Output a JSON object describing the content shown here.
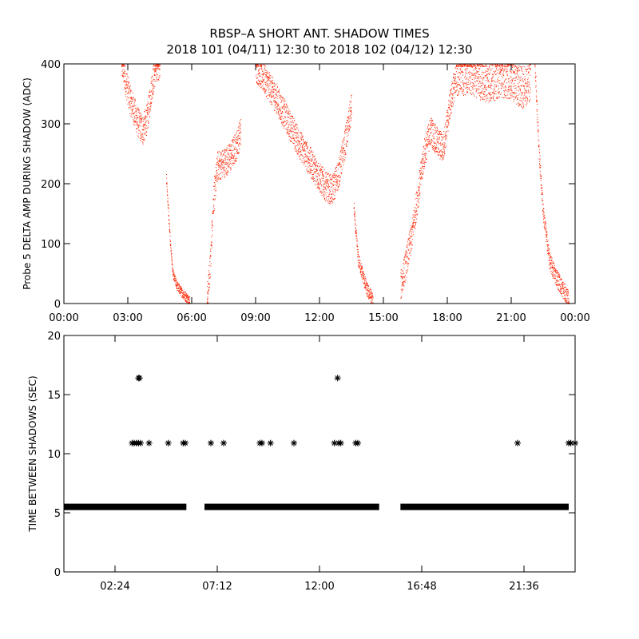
{
  "title": {
    "line1": "RBSP–A SHORT ANT. SHADOW TIMES",
    "line2": "2018 101 (04/11) 12:30 to 2018 102 (04/12) 12:30"
  },
  "colors": {
    "top_series": "#ff2200",
    "bottom_series": "#000000",
    "frame": "#000000"
  },
  "chart_data": [
    {
      "id": "top",
      "type": "scatter",
      "ylabel": "Probe 5 DELTA AMP DURING SHADOW (ADC)",
      "xlabel": "",
      "xlim": [
        0,
        24
      ],
      "ylim": [
        0,
        400
      ],
      "x_ticks": [
        {
          "v": 0,
          "label": "00:00"
        },
        {
          "v": 3,
          "label": "03:00"
        },
        {
          "v": 6,
          "label": "06:00"
        },
        {
          "v": 9,
          "label": "09:00"
        },
        {
          "v": 12,
          "label": "12:00"
        },
        {
          "v": 15,
          "label": "15:00"
        },
        {
          "v": 18,
          "label": "18:00"
        },
        {
          "v": 21,
          "label": "21:00"
        },
        {
          "v": 24,
          "label": "00:00"
        }
      ],
      "y_ticks": [
        {
          "v": 0,
          "label": "0"
        },
        {
          "v": 100,
          "label": "100"
        },
        {
          "v": 200,
          "label": "200"
        },
        {
          "v": 300,
          "label": "300"
        },
        {
          "v": 400,
          "label": "400"
        }
      ],
      "series": [
        {
          "color": "#ff2200",
          "segments": [
            {
              "x": [
                2.7,
                2.9,
                3.1,
                3.3,
                3.5,
                3.7,
                3.9,
                4.1,
                4.3,
                4.5
              ],
              "y": [
                400,
                370,
                340,
                320,
                300,
                290,
                310,
                360,
                395,
                400
              ],
              "spread": 25
            },
            {
              "x": [
                4.8,
                4.95,
                5.1,
                5.3,
                5.5,
                5.7,
                5.9
              ],
              "y": [
                210,
                120,
                50,
                30,
                20,
                12,
                5
              ],
              "spread": 8
            },
            {
              "x": [
                6.7,
                6.85,
                7.0,
                7.2,
                7.5,
                7.8,
                8.1,
                8.3
              ],
              "y": [
                5,
                60,
                170,
                230,
                235,
                245,
                265,
                290
              ],
              "spread": 25
            },
            {
              "x": [
                9.0,
                9.5,
                10.0,
                10.5,
                11.0,
                11.5,
                12.0,
                12.3,
                12.6,
                12.9,
                13.2,
                13.5
              ],
              "y": [
                395,
                370,
                340,
                305,
                270,
                240,
                210,
                195,
                190,
                220,
                270,
                330
              ],
              "spread": 25
            },
            {
              "x": [
                13.6,
                13.8,
                14.0,
                14.2,
                14.5
              ],
              "y": [
                160,
                75,
                50,
                25,
                5
              ],
              "spread": 12
            },
            {
              "x": [
                15.8,
                16.0,
                16.3,
                16.6,
                16.9,
                17.2,
                17.5,
                17.8,
                18.1,
                18.4
              ],
              "y": [
                30,
                60,
                110,
                180,
                250,
                290,
                270,
                260,
                330,
                380
              ],
              "spread": 25
            },
            {
              "x": [
                18.4,
                19.0,
                19.5,
                20.0,
                20.5,
                21.0,
                21.5,
                21.9
              ],
              "y": [
                380,
                385,
                375,
                370,
                380,
                375,
                360,
                375
              ],
              "spread": 35
            },
            {
              "x": [
                22.1,
                22.3,
                22.5,
                22.8,
                23.1,
                23.4,
                23.7
              ],
              "y": [
                400,
                250,
                150,
                70,
                45,
                25,
                5
              ],
              "spread": 15
            }
          ]
        }
      ]
    },
    {
      "id": "bottom",
      "type": "scatter",
      "ylabel": "TIME BETWEEN SHADOWS (SEC)",
      "xlabel": "",
      "xlim": [
        0,
        24
      ],
      "ylim": [
        0,
        20
      ],
      "x_ticks": [
        {
          "v": 2.4,
          "label": "02:24"
        },
        {
          "v": 7.2,
          "label": "07:12"
        },
        {
          "v": 12.0,
          "label": "12:00"
        },
        {
          "v": 16.8,
          "label": "16:48"
        },
        {
          "v": 21.6,
          "label": "21:36"
        }
      ],
      "y_ticks": [
        {
          "v": 0,
          "label": "0"
        },
        {
          "v": 5,
          "label": "5"
        },
        {
          "v": 10,
          "label": "10"
        },
        {
          "v": 15,
          "label": "15"
        },
        {
          "v": 20,
          "label": "20"
        }
      ],
      "baseline": {
        "y": 5.5,
        "ranges": [
          [
            0.0,
            5.75
          ],
          [
            6.6,
            14.8
          ],
          [
            15.8,
            23.7
          ]
        ]
      },
      "series": [
        {
          "color": "#000000",
          "x": [
            3.2,
            3.3,
            3.4,
            3.5,
            3.6,
            3.5,
            3.55,
            4.0,
            4.9,
            5.6,
            5.7,
            6.9,
            7.5,
            9.2,
            9.3,
            9.7,
            10.8,
            12.7,
            12.9,
            13.0,
            12.85,
            13.7,
            13.8,
            21.3,
            23.7,
            23.8,
            24.0
          ],
          "y": [
            10.9,
            10.9,
            10.9,
            10.9,
            10.9,
            16.4,
            16.4,
            10.9,
            10.9,
            10.9,
            10.9,
            10.9,
            10.9,
            10.9,
            10.9,
            10.9,
            10.9,
            10.9,
            10.9,
            10.9,
            16.4,
            10.9,
            10.9,
            10.9,
            10.9,
            10.9,
            10.9
          ]
        }
      ]
    }
  ]
}
